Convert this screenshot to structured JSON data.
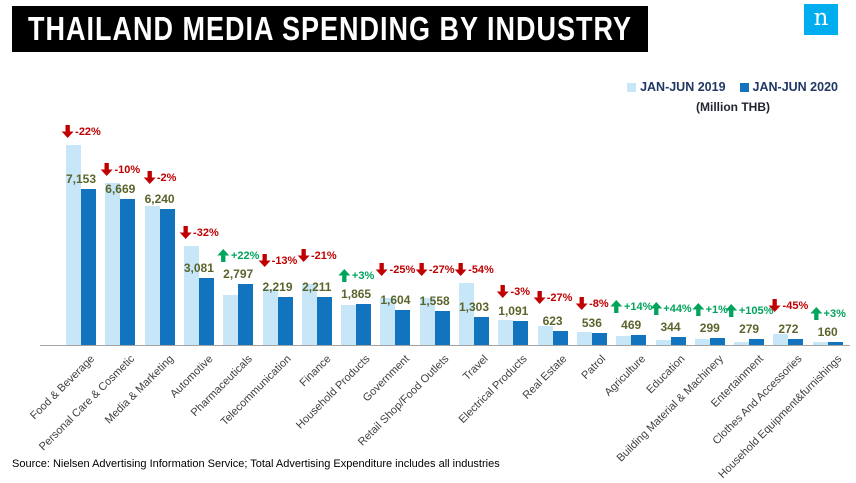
{
  "title": "THAILAND MEDIA SPENDING BY INDUSTRY",
  "logo": {
    "letter": "n"
  },
  "legend": {
    "series1": "JAN-JUN 2019",
    "series2": "JAN-JUN 2020",
    "unit": "(Million THB)"
  },
  "source": "Source: Nielsen Advertising Information Service; Total Advertising Expenditure includes all industries",
  "colors": {
    "bar_2019": "#c7e6f8",
    "bar_2020": "#1273bf",
    "positive": "#00a45c",
    "negative": "#c00000",
    "value_label": "#5a652c",
    "legend_text": "#1F3864",
    "logo_blue": "#00AEEF"
  },
  "chart_data": {
    "type": "bar",
    "title": "THAILAND MEDIA SPENDING BY INDUSTRY",
    "xlabel": "",
    "ylabel": "Million THB",
    "ylim": [
      0,
      9600
    ],
    "grid": false,
    "legend_position": "top-right",
    "categories": [
      "Food & Beverage",
      "Personal Care & Cosmetic",
      "Media & Marketing",
      "Automotive",
      "Pharmaceuticals",
      "Telecommunication",
      "Finance",
      "Household Products",
      "Government",
      "Retail Shop/Food Outlets",
      "Travel",
      "Electrical Products",
      "Real Estate",
      "Patrol",
      "Agriculture",
      "Education",
      "Building Material & Machinery",
      "Entertainment",
      "Clothes And Accessories",
      "Household Equipment&furnishings"
    ],
    "series": [
      {
        "name": "JAN-JUN 2019",
        "estimated_from_bars": true,
        "values": [
          9170,
          7410,
          6367,
          4531,
          2293,
          2551,
          2799,
          1811,
          2139,
          2134,
          2833,
          1125,
          853,
          583,
          411,
          239,
          296,
          136,
          495,
          155
        ]
      },
      {
        "name": "JAN-JUN 2020",
        "values": [
          7153,
          6669,
          6240,
          3081,
          2797,
          2219,
          2211,
          1865,
          1604,
          1558,
          1303,
          1091,
          623,
          536,
          469,
          344,
          299,
          279,
          272,
          160
        ]
      }
    ],
    "value_labels_2020": [
      "7,153",
      "6,669",
      "6,240",
      "3,081",
      "2,797",
      "2,219",
      "2,211",
      "1,865",
      "1,604",
      "1,558",
      "1,303",
      "1,091",
      "623",
      "536",
      "469",
      "344",
      "299",
      "279",
      "272",
      "160"
    ],
    "pct_change": [
      "-22%",
      "-10%",
      "-2%",
      "-32%",
      "+22%",
      "-13%",
      "-21%",
      "+3%",
      "-25%",
      "-27%",
      "-54%",
      "-3%",
      "-27%",
      "-8%",
      "+14%",
      "+44%",
      "+1%",
      "+105%",
      "-45%",
      "+3%"
    ]
  }
}
